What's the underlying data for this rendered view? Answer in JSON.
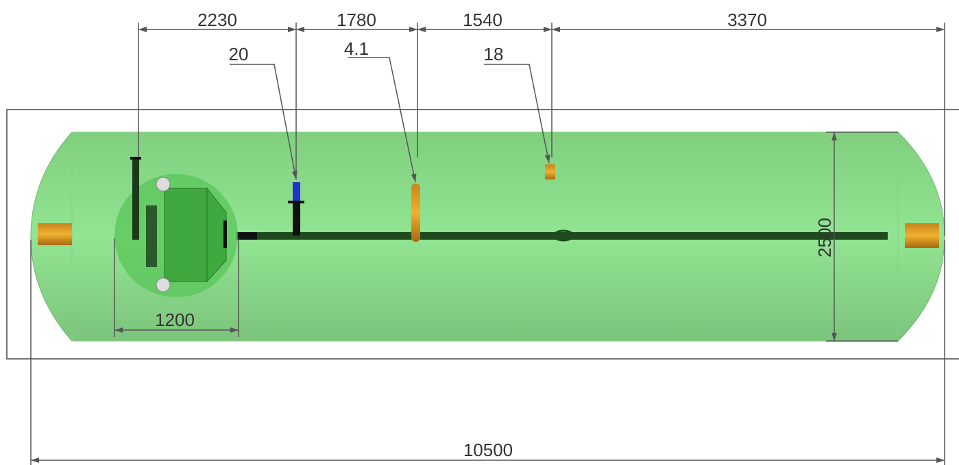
{
  "dimensions": {
    "top": [
      "2230",
      "1780",
      "1540",
      "3370"
    ],
    "height": "2500",
    "manhole": "1200",
    "total": "10500"
  },
  "callouts": [
    "20",
    "4.1",
    "18"
  ]
}
